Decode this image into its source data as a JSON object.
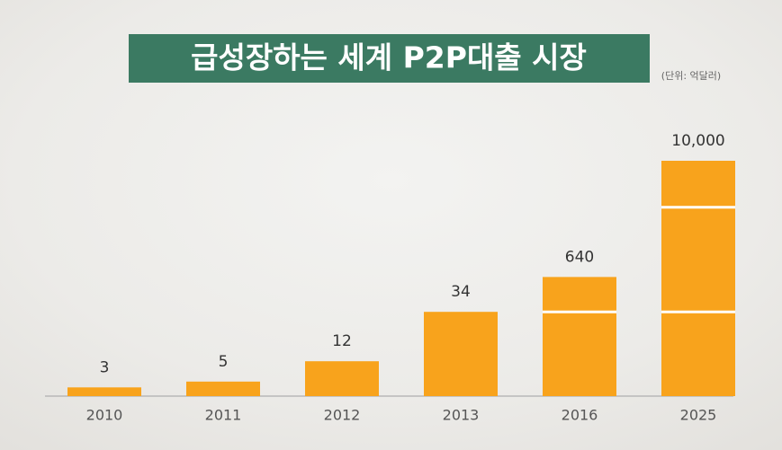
{
  "chart_data": {
    "type": "bar",
    "title": "급성장하는 세계 P2P대출 시장",
    "unit_note": "(단위: 억달러)",
    "categories": [
      "2010",
      "2011",
      "2012",
      "2013",
      "2016",
      "2025"
    ],
    "values": [
      3,
      5,
      12,
      34,
      640,
      10000
    ],
    "value_labels": [
      "3",
      "5",
      "12",
      "34",
      "640",
      "10,000"
    ],
    "color": "#f8a31c",
    "ylim": [
      0,
      10000
    ],
    "ybreaks": [
      [
        29,
        628
      ],
      [
        664,
        9984
      ]
    ]
  }
}
